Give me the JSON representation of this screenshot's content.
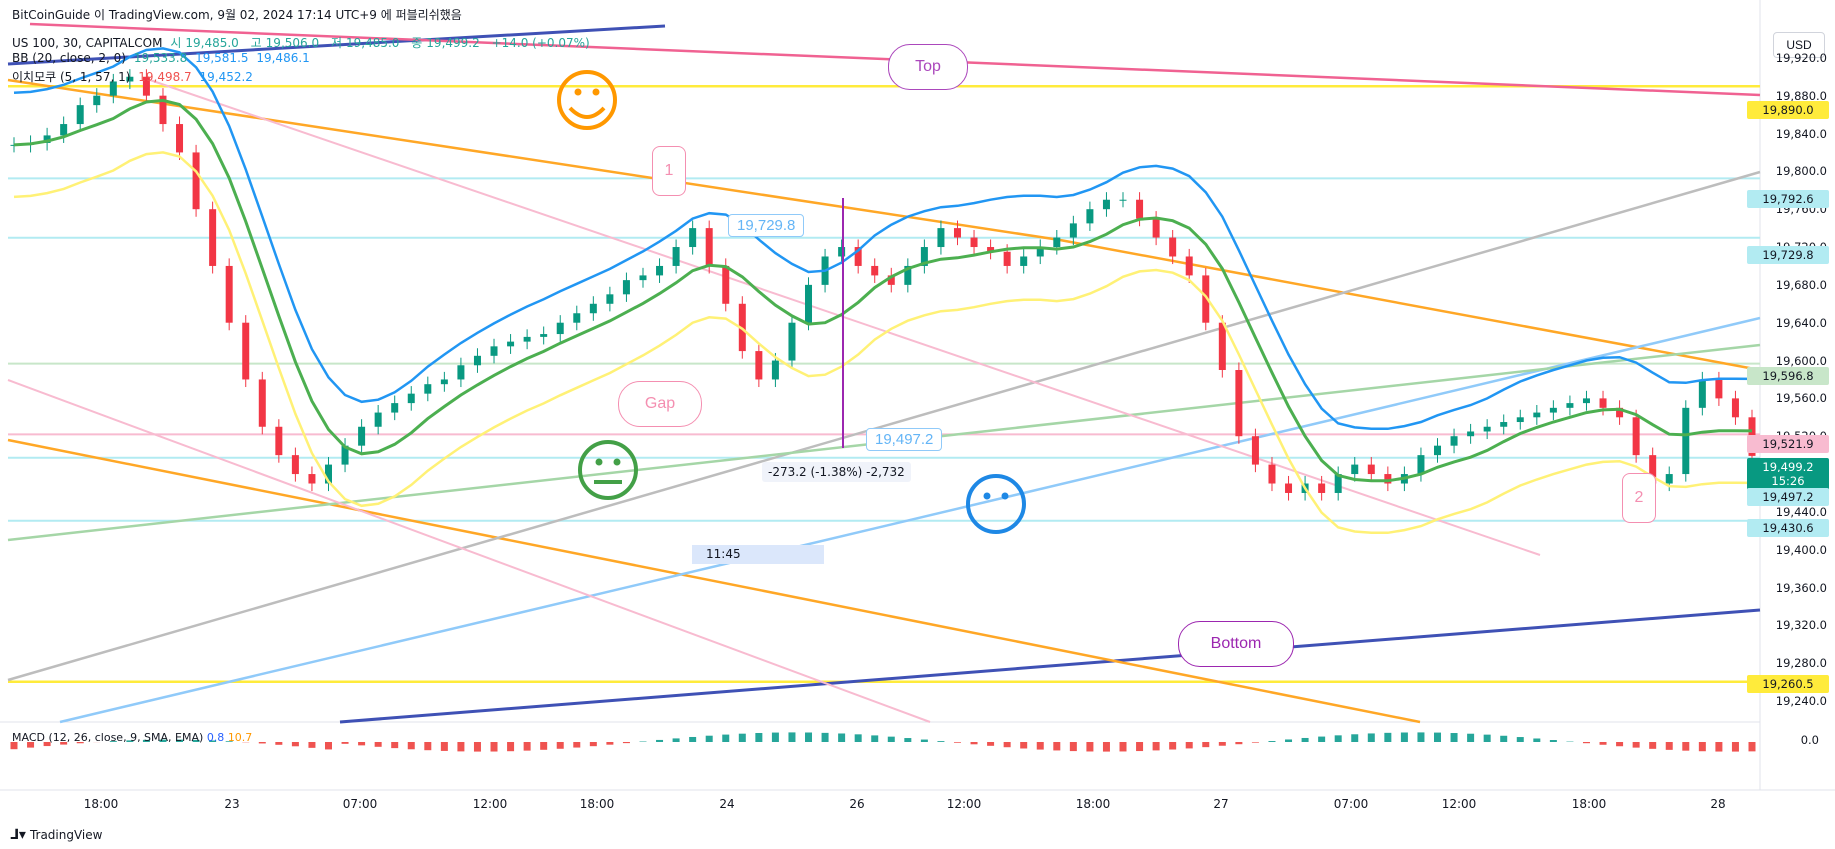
{
  "header": {
    "source": "BitCoinGuide 이 TradingView.com, 9월 02, 2024 17:14 UTC+9 에 퍼블리쉬했음",
    "symbol": "US 100, 30, CAPITALCOM",
    "ohlc": {
      "open_label": "시",
      "open": "19,485.0",
      "high_label": "고",
      "high": "19,506.0",
      "low_label": "저",
      "low": "19,485.0",
      "close_label": "종",
      "close": "19,499.2",
      "change": "+14.0 (+0.07%)"
    },
    "bb": {
      "label": "BB (20, close, 2, 0)",
      "basis": "19,533.8",
      "upper": "19,581.5",
      "lower": "19,486.1"
    },
    "ichimoku": {
      "label": "이치모쿠 (5, 1, 57, 1)",
      "v1": "19,498.7",
      "v2": "19,452.2"
    }
  },
  "currency_button": "USD",
  "y_axis_ticks": [
    "19,920.0",
    "19,880.0",
    "19,840.0",
    "19,800.0",
    "19,760.0",
    "19,720.0",
    "19,680.0",
    "19,640.0",
    "19,600.0",
    "19,560.0",
    "19,520.0",
    "19,480.0",
    "19,440.0",
    "19,400.0",
    "19,360.0",
    "19,320.0",
    "19,280.0",
    "19,240.0"
  ],
  "x_axis_ticks": [
    "18:00",
    "23",
    "07:00",
    "12:00",
    "18:00",
    "24",
    "26",
    "12:00",
    "18:00",
    "27",
    "07:00",
    "12:00",
    "18:00",
    "28"
  ],
  "price_labels": [
    {
      "value": "19,890.0",
      "bg": "#ffeb3b",
      "fg": "#131722"
    },
    {
      "value": "19,792.6",
      "bg": "#b2ebf2",
      "fg": "#131722"
    },
    {
      "value": "19,729.8",
      "bg": "#b2ebf2",
      "fg": "#131722"
    },
    {
      "value": "19,596.8",
      "bg": "#c8e6c9",
      "fg": "#131722"
    },
    {
      "value": "19,521.9",
      "bg": "#f8bbd0",
      "fg": "#131722"
    },
    {
      "value": "19,499.2",
      "bg": "#089981",
      "fg": "#ffffff"
    },
    {
      "value": "15:26",
      "bg": "#089981",
      "fg": "#ffffff"
    },
    {
      "value": "19,497.2",
      "bg": "#b2ebf2",
      "fg": "#131722"
    },
    {
      "value": "19,430.6",
      "bg": "#b2ebf2",
      "fg": "#131722"
    },
    {
      "value": "19,260.5",
      "bg": "#ffeb3b",
      "fg": "#131722"
    }
  ],
  "annotations": {
    "top": "Top",
    "bottom": "Bottom",
    "gap": "Gap",
    "one": "1",
    "two": "2",
    "tag_high": "19,729.8",
    "tag_low": "19,497.2",
    "measure": "-273.2 (-1.38%) -2,732",
    "time_label": "11:45"
  },
  "macd": {
    "label": "MACD (12, 26, close, 9, SMA, EMA)",
    "v1": "0.8",
    "v2": "10.7",
    "zero": "0.0"
  },
  "footer": "TradingView",
  "colors": {
    "up": "#089981",
    "down": "#f23645",
    "bb_band": "#2196f3",
    "bb_basis": "#4caf50",
    "ichimoku_lower": "#ffeb3b",
    "ichi_cloud_blue": "#bbdefb",
    "ichi_cloud_red": "#ffcdd2"
  },
  "chart_data": {
    "type": "candlestick",
    "title": "US 100, 30, CAPITALCOM",
    "ylim": [
      19220,
      19960
    ],
    "y_ticks": [
      19920,
      19880,
      19840,
      19800,
      19760,
      19720,
      19680,
      19640,
      19600,
      19560,
      19520,
      19480,
      19440,
      19400,
      19360,
      19320,
      19280,
      19240
    ],
    "close_series": [
      19828,
      19830,
      19838,
      19850,
      19870,
      19880,
      19895,
      19900,
      19880,
      19850,
      19820,
      19760,
      19700,
      19640,
      19580,
      19530,
      19500,
      19480,
      19470,
      19490,
      19510,
      19530,
      19545,
      19555,
      19565,
      19575,
      19580,
      19595,
      19605,
      19615,
      19620,
      19625,
      19628,
      19640,
      19650,
      19660,
      19670,
      19685,
      19690,
      19700,
      19720,
      19740,
      19700,
      19660,
      19610,
      19580,
      19600,
      19640,
      19680,
      19710,
      19720,
      19700,
      19690,
      19680,
      19700,
      19720,
      19740,
      19730,
      19720,
      19715,
      19700,
      19710,
      19720,
      19730,
      19745,
      19760,
      19770,
      19770,
      19750,
      19730,
      19710,
      19690,
      19640,
      19590,
      19520,
      19490,
      19470,
      19460,
      19470,
      19460,
      19480,
      19490,
      19480,
      19470,
      19480,
      19500,
      19510,
      19520,
      19525,
      19530,
      19535,
      19540,
      19545,
      19550,
      19555,
      19560,
      19550,
      19540,
      19500,
      19470,
      19480,
      19550,
      19580,
      19560,
      19540,
      19499.2
    ],
    "horizontal_levels": [
      19890.0,
      19792.6,
      19729.8,
      19596.8,
      19521.9,
      19497.2,
      19430.6,
      19260.5
    ]
  }
}
